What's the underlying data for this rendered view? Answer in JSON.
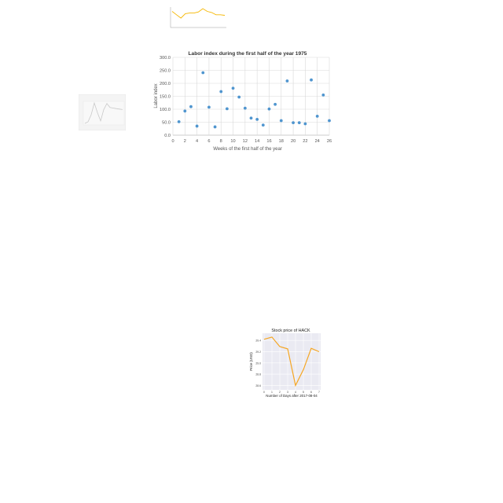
{
  "chart_data": [
    {
      "type": "scatter",
      "title": "Labor index during the first half of the year 1975",
      "xlabel": "Weeks of the first half of the year",
      "ylabel": "Labor index",
      "xlim": [
        0,
        26
      ],
      "ylim": [
        0,
        300
      ],
      "xticks": [
        "0",
        "2",
        "4",
        "6",
        "8",
        "10",
        "12",
        "14",
        "16",
        "18",
        "20",
        "22",
        "24",
        "26"
      ],
      "yticks": [
        "0.0",
        "50.0",
        "100.0",
        "150.0",
        "200.0",
        "250.0",
        "300.0"
      ],
      "grid": true,
      "color": "#4f95cf",
      "x": [
        1,
        2,
        3,
        4,
        5,
        6,
        7,
        8,
        9,
        10,
        11,
        12,
        13,
        14,
        15,
        16,
        17,
        18,
        19,
        20,
        21,
        22,
        23,
        24,
        25,
        26
      ],
      "y": [
        52,
        93,
        110,
        35,
        241,
        108,
        32,
        168,
        102,
        181,
        147,
        104,
        66,
        61,
        39,
        101,
        119,
        56,
        209,
        48,
        48,
        44,
        213,
        73,
        155,
        56
      ]
    },
    {
      "type": "line",
      "title": "Stock price of HACK",
      "xlabel": "Number of Days after 2017-08-04",
      "ylabel": "Price (USD)",
      "xticks": [
        "0",
        "1",
        "2",
        "3",
        "4",
        "5",
        "6",
        "7"
      ],
      "yticks": [
        "28.6",
        "28.8",
        "29.0",
        "29.2",
        "29.4"
      ],
      "ylim": [
        28.55,
        29.5
      ],
      "grid": true,
      "color": "#f5a623",
      "x": [
        0,
        1,
        2,
        3,
        4,
        5,
        6,
        7
      ],
      "y": [
        29.42,
        29.46,
        29.29,
        29.25,
        28.6,
        28.88,
        29.26,
        29.2
      ]
    },
    {
      "type": "line",
      "title": "",
      "color": "#f5b700",
      "values": [
        30,
        24,
        18,
        26,
        27,
        27,
        29,
        35,
        30,
        28,
        24,
        24,
        23
      ]
    },
    {
      "type": "line",
      "title": "",
      "color": "#c9c9c9",
      "values": [
        5,
        8,
        22,
        45,
        26,
        10,
        32,
        44,
        36,
        35,
        34,
        33,
        32
      ]
    }
  ]
}
